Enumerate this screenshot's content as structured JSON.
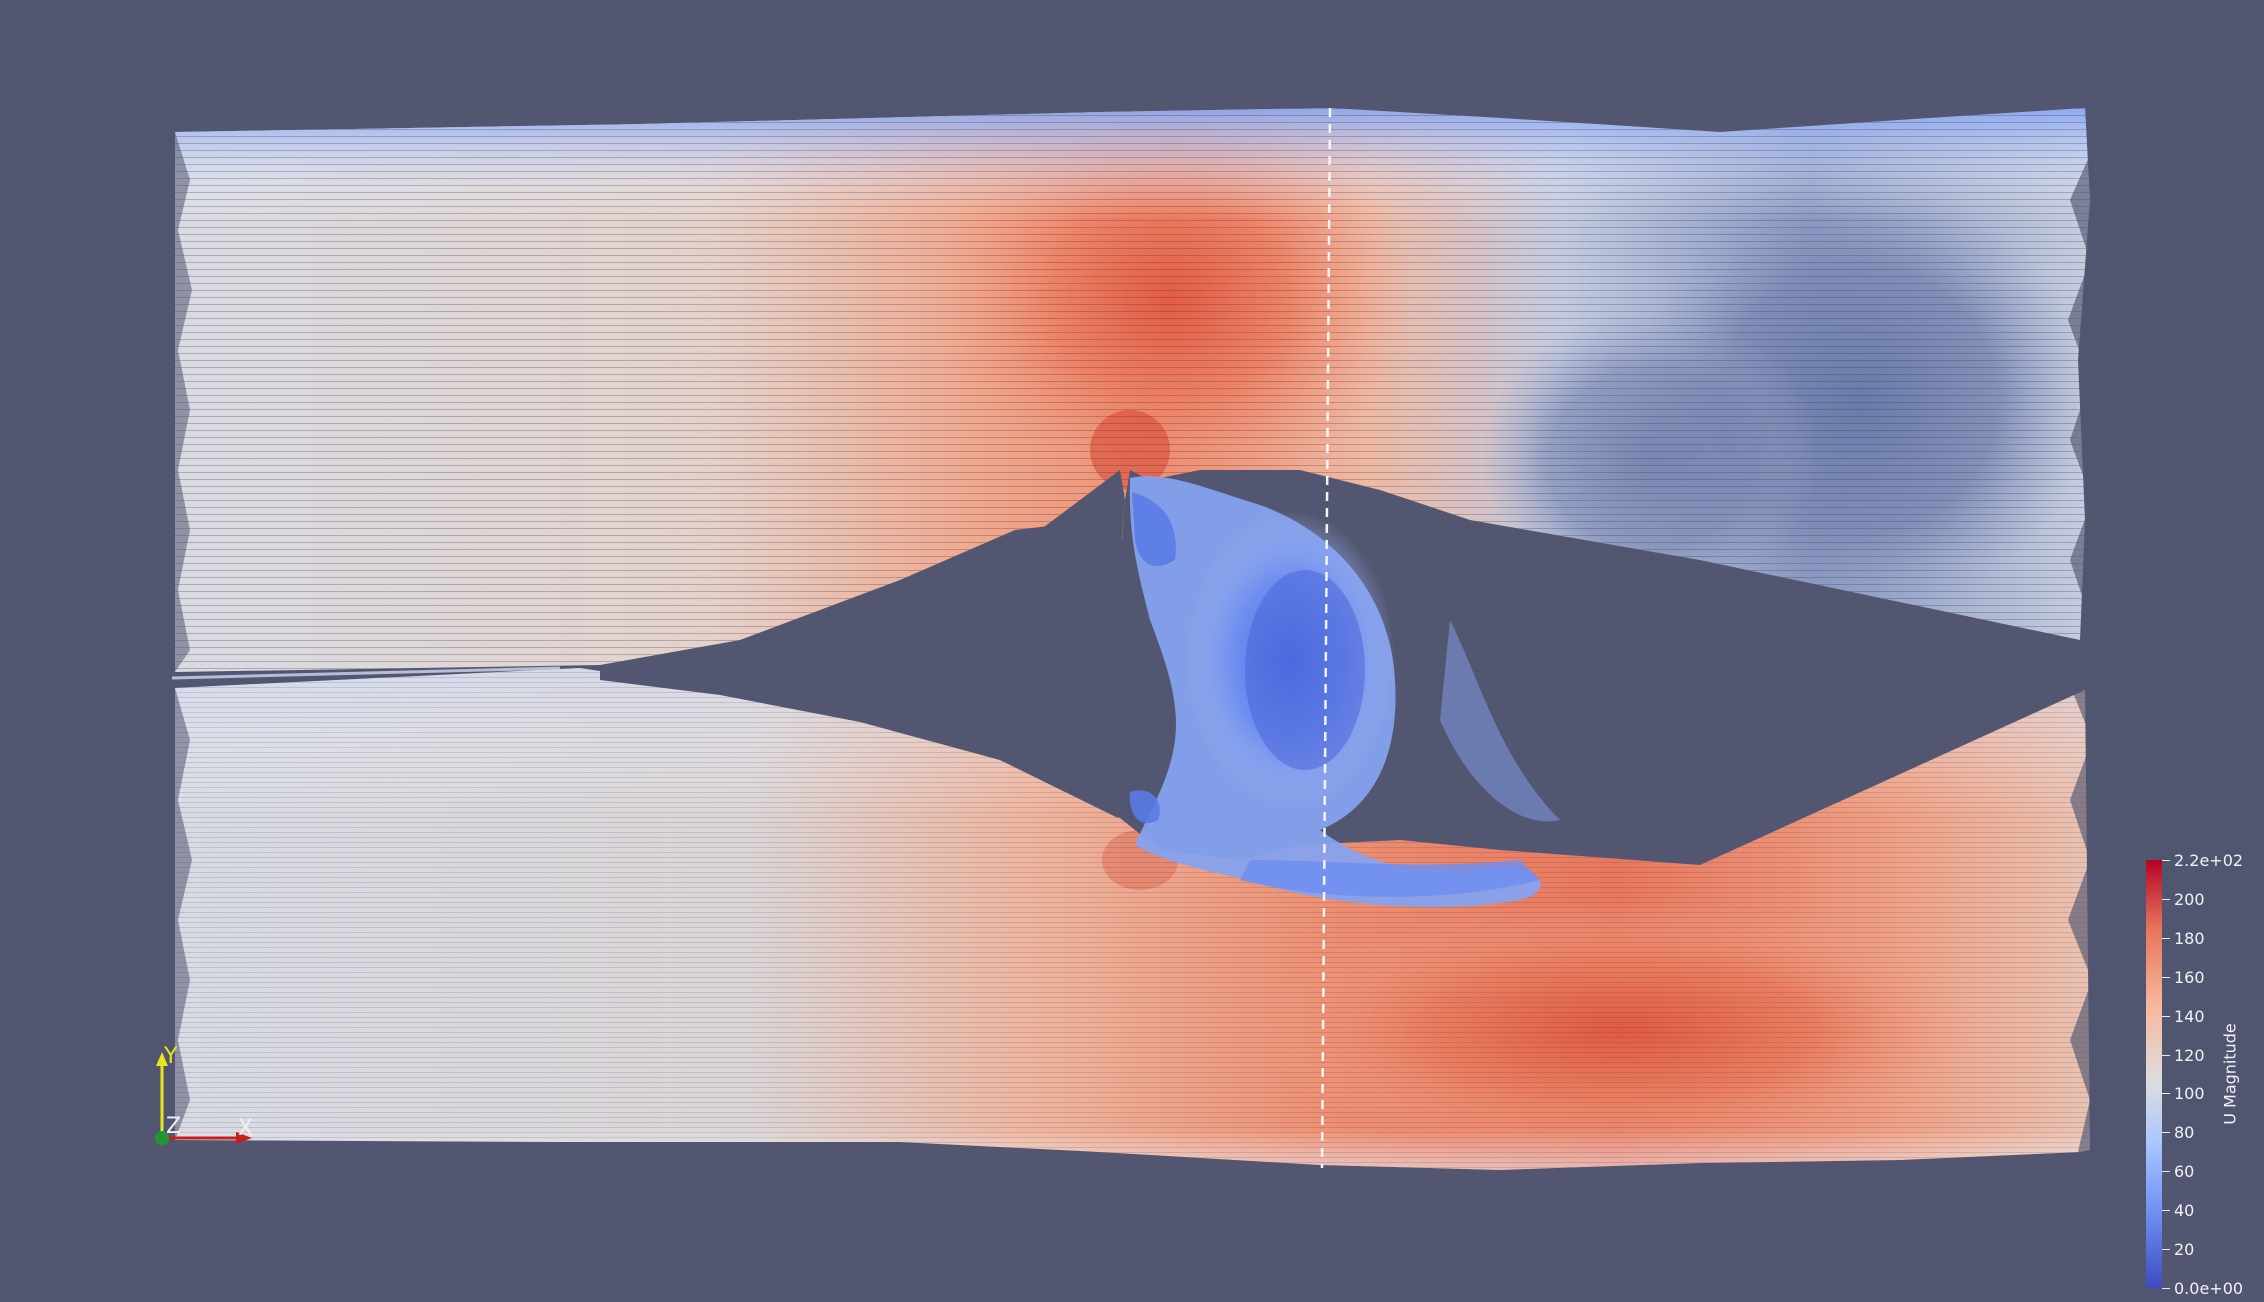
{
  "legend": {
    "title": "U Magnitude",
    "min_label": "0.0e+00",
    "max_label": "2.2e+02",
    "tick_labels": [
      "20",
      "40",
      "60",
      "80",
      "100",
      "120",
      "140",
      "160",
      "180",
      "200"
    ],
    "range": [
      0,
      220
    ],
    "colormap": "cool to warm",
    "colors": [
      "#3b4cc0",
      "#6f92f3",
      "#aac7fd",
      "#dddddd",
      "#f7b89c",
      "#e7745b",
      "#b40426"
    ]
  },
  "axes": {
    "x_label": "X",
    "y_label": "Y",
    "z_label": "Z",
    "x_color": "#c81e1e",
    "y_color": "#e6e61e",
    "z_color": "#1e9632"
  },
  "scene": {
    "background": "#525670",
    "content": "streamlines colored by U magnitude around a wedge-shaped obstacle with wake recirculation"
  }
}
